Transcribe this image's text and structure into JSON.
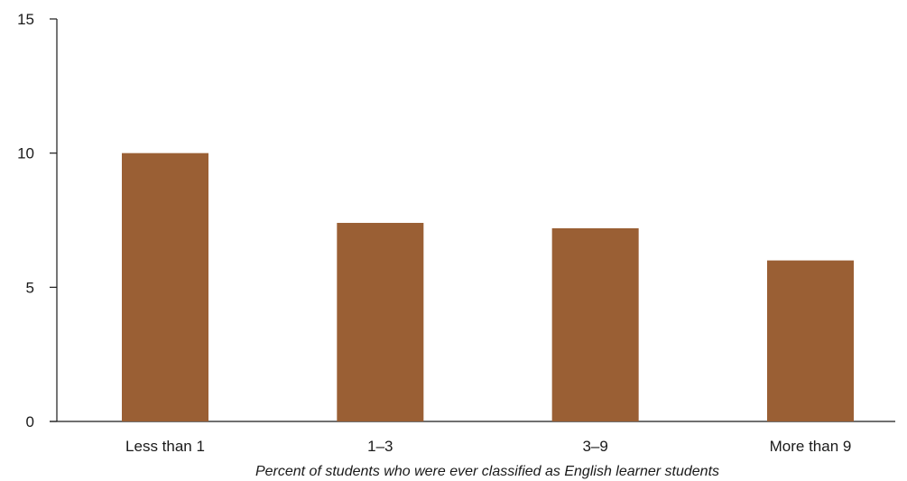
{
  "chart_data": {
    "type": "bar",
    "title": "",
    "xlabel": "Percent of students who were ever classified as English learner students",
    "ylabel": "",
    "categories": [
      "Less than 1",
      "1–3",
      "3–9",
      "More than 9"
    ],
    "values": [
      10.0,
      7.4,
      7.2,
      6.0
    ],
    "ylim": [
      0,
      15
    ],
    "yticks": [
      0,
      5,
      10,
      15
    ],
    "grid": false,
    "legend": "none",
    "bar_color": "#9A5F34",
    "axis_color": "#1a1a1a"
  }
}
